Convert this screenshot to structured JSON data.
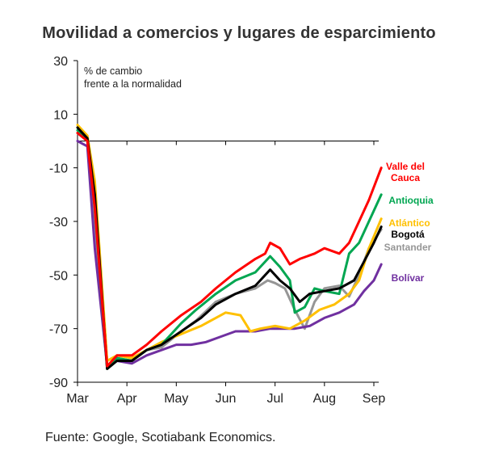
{
  "chart_data": {
    "type": "line",
    "title": "Movilidad a comercios y lugares de esparcimiento",
    "ylabel_note": [
      "% de cambio",
      "frente a la normalidad"
    ],
    "ylim": [
      -90,
      30
    ],
    "yticks": [
      30,
      10,
      -10,
      -30,
      -50,
      -70,
      -90
    ],
    "xlim": [
      0,
      6.1
    ],
    "xticks": [
      {
        "label": "Mar",
        "x": 0
      },
      {
        "label": "Apr",
        "x": 1
      },
      {
        "label": "May",
        "x": 2
      },
      {
        "label": "Jun",
        "x": 3
      },
      {
        "label": "Jul",
        "x": 4
      },
      {
        "label": "Aug",
        "x": 5
      },
      {
        "label": "Sep",
        "x": 6
      }
    ],
    "grid": false,
    "legend": "right, at line ends",
    "series": [
      {
        "name": "Santander",
        "color": "#969696",
        "legend_label": [
          "Santander"
        ],
        "points": [
          [
            0,
            3
          ],
          [
            0.2,
            0
          ],
          [
            0.35,
            -30
          ],
          [
            0.6,
            -85
          ],
          [
            0.8,
            -81
          ],
          [
            1.1,
            -82
          ],
          [
            1.4,
            -78
          ],
          [
            1.7,
            -77
          ],
          [
            2.1,
            -71
          ],
          [
            2.4,
            -67
          ],
          [
            2.8,
            -60
          ],
          [
            3.2,
            -57
          ],
          [
            3.6,
            -55
          ],
          [
            3.85,
            -52
          ],
          [
            4.0,
            -53
          ],
          [
            4.2,
            -55
          ],
          [
            4.4,
            -63
          ],
          [
            4.6,
            -70
          ],
          [
            4.8,
            -60
          ],
          [
            5.0,
            -55
          ],
          [
            5.3,
            -54
          ],
          [
            5.5,
            -58
          ],
          [
            5.7,
            -50
          ],
          [
            5.9,
            -40
          ],
          [
            6.15,
            -33
          ]
        ]
      },
      {
        "name": "Bolívar",
        "color": "#7030a0",
        "legend_label": [
          "Bolívar"
        ],
        "points": [
          [
            0,
            0
          ],
          [
            0.2,
            -2
          ],
          [
            0.35,
            -40
          ],
          [
            0.6,
            -84
          ],
          [
            0.8,
            -82
          ],
          [
            1.1,
            -83
          ],
          [
            1.4,
            -80
          ],
          [
            1.7,
            -78
          ],
          [
            2.0,
            -76
          ],
          [
            2.3,
            -76
          ],
          [
            2.6,
            -75
          ],
          [
            2.9,
            -73
          ],
          [
            3.2,
            -71
          ],
          [
            3.6,
            -71
          ],
          [
            3.9,
            -70
          ],
          [
            4.1,
            -70
          ],
          [
            4.4,
            -70
          ],
          [
            4.7,
            -69
          ],
          [
            5.0,
            -66
          ],
          [
            5.3,
            -64
          ],
          [
            5.6,
            -61
          ],
          [
            5.8,
            -56
          ],
          [
            6.0,
            -52
          ],
          [
            6.15,
            -46
          ]
        ]
      },
      {
        "name": "Atlántico",
        "color": "#ffc000",
        "legend_label": [
          "Atlántico"
        ],
        "points": [
          [
            0,
            6
          ],
          [
            0.2,
            2
          ],
          [
            0.35,
            -15
          ],
          [
            0.6,
            -82
          ],
          [
            0.8,
            -80
          ],
          [
            1.1,
            -81
          ],
          [
            1.4,
            -78
          ],
          [
            1.7,
            -75
          ],
          [
            2.1,
            -72
          ],
          [
            2.5,
            -69
          ],
          [
            2.8,
            -66
          ],
          [
            3.0,
            -64
          ],
          [
            3.3,
            -65
          ],
          [
            3.5,
            -71
          ],
          [
            3.7,
            -70
          ],
          [
            4.0,
            -69
          ],
          [
            4.3,
            -70
          ],
          [
            4.6,
            -67
          ],
          [
            4.9,
            -63
          ],
          [
            5.2,
            -61
          ],
          [
            5.5,
            -57
          ],
          [
            5.7,
            -52
          ],
          [
            5.9,
            -40
          ],
          [
            6.15,
            -29
          ]
        ]
      },
      {
        "name": "Antioquia",
        "color": "#00a651",
        "legend_label": [
          "Antioquia"
        ],
        "points": [
          [
            0,
            4
          ],
          [
            0.2,
            1
          ],
          [
            0.35,
            -25
          ],
          [
            0.6,
            -85
          ],
          [
            0.8,
            -81
          ],
          [
            1.1,
            -82
          ],
          [
            1.4,
            -78
          ],
          [
            1.7,
            -76
          ],
          [
            2.1,
            -68
          ],
          [
            2.4,
            -63
          ],
          [
            2.8,
            -57
          ],
          [
            3.2,
            -52
          ],
          [
            3.6,
            -49
          ],
          [
            3.9,
            -43
          ],
          [
            4.1,
            -47
          ],
          [
            4.3,
            -52
          ],
          [
            4.4,
            -64
          ],
          [
            4.6,
            -62
          ],
          [
            4.8,
            -55
          ],
          [
            5.0,
            -56
          ],
          [
            5.3,
            -57
          ],
          [
            5.5,
            -42
          ],
          [
            5.7,
            -38
          ],
          [
            5.9,
            -30
          ],
          [
            6.15,
            -20
          ]
        ]
      },
      {
        "name": "Bogotá",
        "color": "#000000",
        "legend_label": [
          "Bogotá"
        ],
        "points": [
          [
            0,
            5
          ],
          [
            0.2,
            1
          ],
          [
            0.35,
            -20
          ],
          [
            0.6,
            -85
          ],
          [
            0.8,
            -82
          ],
          [
            1.1,
            -82
          ],
          [
            1.4,
            -78
          ],
          [
            1.7,
            -76
          ],
          [
            2.1,
            -71
          ],
          [
            2.5,
            -66
          ],
          [
            2.8,
            -61
          ],
          [
            3.2,
            -57
          ],
          [
            3.6,
            -54
          ],
          [
            3.9,
            -48
          ],
          [
            4.1,
            -52
          ],
          [
            4.3,
            -55
          ],
          [
            4.5,
            -60
          ],
          [
            4.7,
            -57
          ],
          [
            5.0,
            -56
          ],
          [
            5.3,
            -55
          ],
          [
            5.6,
            -52
          ],
          [
            5.8,
            -45
          ],
          [
            6.0,
            -38
          ],
          [
            6.15,
            -32
          ]
        ]
      },
      {
        "name": "Valle del Cauca",
        "color": "#ff0000",
        "legend_label": [
          "Valle del",
          "Cauca"
        ],
        "points": [
          [
            0,
            3
          ],
          [
            0.2,
            0
          ],
          [
            0.35,
            -25
          ],
          [
            0.6,
            -84
          ],
          [
            0.8,
            -80
          ],
          [
            1.1,
            -80
          ],
          [
            1.4,
            -76
          ],
          [
            1.7,
            -71
          ],
          [
            2.1,
            -65
          ],
          [
            2.5,
            -60
          ],
          [
            2.8,
            -55
          ],
          [
            3.2,
            -49
          ],
          [
            3.6,
            -44
          ],
          [
            3.8,
            -42
          ],
          [
            3.9,
            -38
          ],
          [
            4.1,
            -40
          ],
          [
            4.3,
            -46
          ],
          [
            4.5,
            -44
          ],
          [
            4.8,
            -42
          ],
          [
            5.0,
            -40
          ],
          [
            5.3,
            -42
          ],
          [
            5.5,
            -38
          ],
          [
            5.7,
            -30
          ],
          [
            5.9,
            -22
          ],
          [
            6.15,
            -10
          ]
        ]
      }
    ]
  },
  "source_note": "Fuente: Google, Scotiabank Economics."
}
